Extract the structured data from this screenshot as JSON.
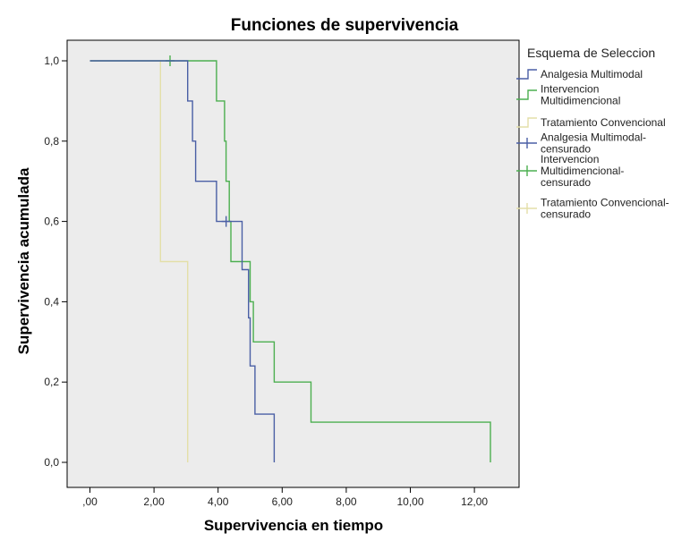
{
  "chart_data": {
    "type": "line",
    "subtype": "kaplan-meier-step",
    "title": "Funciones de supervivencia",
    "xlabel": "Supervivencia en tiempo",
    "ylabel": "Supervivencia acumulada",
    "xlim": [
      0,
      13
    ],
    "ylim": [
      0,
      1.05
    ],
    "x_ticks": [
      0,
      2,
      4,
      6,
      8,
      10,
      12
    ],
    "x_tick_labels": [
      ",00",
      "2,00",
      "4,00",
      "6,00",
      "8,00",
      "10,00",
      "12,00"
    ],
    "y_ticks": [
      0,
      0.2,
      0.4,
      0.6,
      0.8,
      1.0
    ],
    "y_tick_labels": [
      "0,0",
      "0,2",
      "0,4",
      "0,6",
      "0,8",
      "1,0"
    ],
    "grid": false,
    "background": "#ececec",
    "legend": {
      "title": "Esquema de Seleccion",
      "placement": "right",
      "entries": [
        {
          "label": [
            "Analgesia Multimodal"
          ],
          "color": "#4a5fa5",
          "marker": "step"
        },
        {
          "label": [
            "Intervencion",
            "Multidimencional"
          ],
          "color": "#4caf50",
          "marker": "step"
        },
        {
          "label": [
            "Tratamiento Convencional"
          ],
          "color": "#e3dfa8",
          "marker": "step"
        },
        {
          "label": [
            "Analgesia Multimodal-",
            "censurado"
          ],
          "color": "#4a5fa5",
          "marker": "plus"
        },
        {
          "label": [
            "Intervencion",
            "Multidimencional-",
            "censurado"
          ],
          "color": "#4caf50",
          "marker": "plus"
        },
        {
          "label": [
            "Tratamiento Convencional-",
            "censurado"
          ],
          "color": "#e3dfa8",
          "marker": "plus"
        }
      ]
    },
    "series": [
      {
        "name": "Analgesia Multimodal",
        "color": "#4a5fa5",
        "steps": [
          [
            0,
            1.0
          ],
          [
            3.05,
            0.9
          ],
          [
            3.2,
            0.8
          ],
          [
            3.3,
            0.7
          ],
          [
            3.95,
            0.6
          ],
          [
            4.75,
            0.48
          ],
          [
            4.95,
            0.36
          ],
          [
            5.0,
            0.24
          ],
          [
            5.15,
            0.12
          ],
          [
            5.75,
            0.0
          ]
        ],
        "censored": [
          [
            4.25,
            0.6
          ]
        ]
      },
      {
        "name": "Intervencion Multidimencional",
        "color": "#4caf50",
        "steps": [
          [
            0,
            1.0
          ],
          [
            3.95,
            0.9
          ],
          [
            4.2,
            0.8
          ],
          [
            4.25,
            0.7
          ],
          [
            4.35,
            0.6
          ],
          [
            4.4,
            0.5
          ],
          [
            5.0,
            0.4
          ],
          [
            5.1,
            0.3
          ],
          [
            5.75,
            0.2
          ],
          [
            6.9,
            0.1
          ],
          [
            12.5,
            0.0
          ]
        ],
        "censored": [
          [
            2.5,
            1.0
          ]
        ]
      },
      {
        "name": "Tratamiento Convencional",
        "color": "#e3dfa8",
        "steps": [
          [
            0,
            1.0
          ],
          [
            2.2,
            0.5
          ],
          [
            3.05,
            0.0
          ]
        ],
        "censored": []
      }
    ]
  }
}
